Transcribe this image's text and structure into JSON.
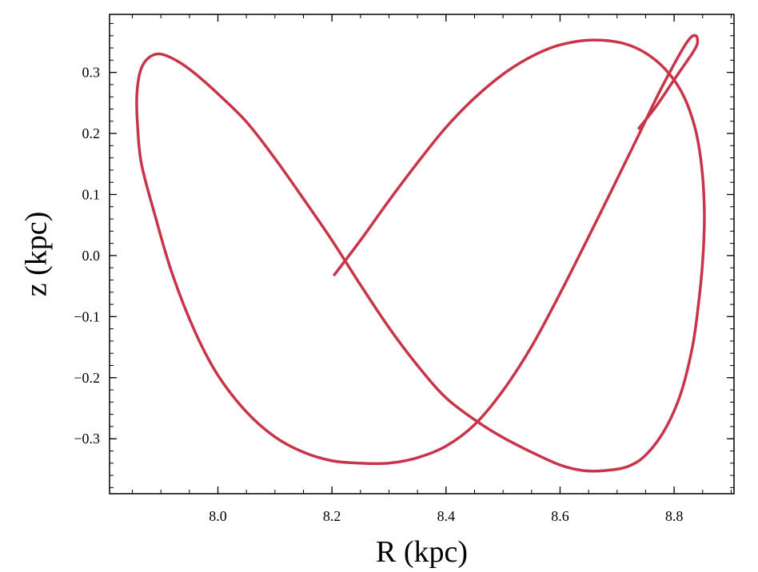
{
  "chart_data": {
    "type": "line",
    "xlabel": "R (kpc)",
    "ylabel": "z (kpc)",
    "xlim": [
      7.81,
      8.905
    ],
    "ylim": [
      -0.39,
      0.395
    ],
    "xticks": [
      {
        "value": 8.0,
        "label": "8.0"
      },
      {
        "value": 8.2,
        "label": "8.2"
      },
      {
        "value": 8.4,
        "label": "8.4"
      },
      {
        "value": 8.6,
        "label": "8.6"
      },
      {
        "value": 8.8,
        "label": "8.8"
      }
    ],
    "yticks": [
      {
        "value": 0.3,
        "label": "0.3"
      },
      {
        "value": 0.2,
        "label": "0.2"
      },
      {
        "value": 0.1,
        "label": "0.1"
      },
      {
        "value": 0.0,
        "label": "0.0"
      },
      {
        "value": -0.1,
        "label": "−0.1"
      },
      {
        "value": -0.2,
        "label": "−0.2"
      },
      {
        "value": -0.3,
        "label": "−0.3"
      }
    ],
    "x_minor_step": 0.05,
    "y_minor_step": 0.02,
    "grid": false,
    "ticks_direction": "in",
    "line_color": "#C8344A",
    "series": [
      {
        "x": [
          8.203,
          8.25,
          8.3,
          8.35,
          8.4,
          8.45,
          8.5,
          8.55,
          8.6,
          8.66,
          8.72,
          8.77,
          8.81,
          8.835,
          8.848,
          8.853,
          8.85,
          8.842,
          8.832,
          8.812,
          8.785,
          8.752,
          8.72,
          8.68,
          8.64,
          8.6,
          8.55,
          8.5,
          8.455,
          8.4,
          8.35,
          8.3,
          8.25,
          8.2,
          8.15,
          8.1,
          8.05,
          8.0,
          7.96,
          7.93,
          7.9,
          7.88,
          7.865,
          7.858,
          7.859,
          7.866,
          7.89,
          7.92,
          7.96,
          8.0,
          8.05,
          8.1,
          8.15,
          8.2,
          8.25,
          8.3,
          8.35,
          8.4,
          8.45,
          8.5,
          8.55,
          8.6,
          8.64,
          8.69,
          8.735,
          8.771,
          8.798,
          8.818,
          8.83,
          8.838,
          8.841,
          8.84,
          8.833,
          8.82,
          8.8,
          8.785,
          8.765,
          8.737
        ],
        "y": [
          -0.033,
          0.025,
          0.09,
          0.152,
          0.21,
          0.258,
          0.297,
          0.326,
          0.345,
          0.353,
          0.345,
          0.318,
          0.273,
          0.215,
          0.148,
          0.07,
          -0.01,
          -0.085,
          -0.15,
          -0.225,
          -0.283,
          -0.325,
          -0.345,
          -0.352,
          -0.352,
          -0.343,
          -0.322,
          -0.298,
          -0.272,
          -0.233,
          -0.18,
          -0.118,
          -0.048,
          0.025,
          0.093,
          0.159,
          0.219,
          0.265,
          0.298,
          0.318,
          0.33,
          0.325,
          0.305,
          0.265,
          0.215,
          0.15,
          0.065,
          -0.03,
          -0.125,
          -0.196,
          -0.256,
          -0.297,
          -0.322,
          -0.336,
          -0.34,
          -0.34,
          -0.331,
          -0.312,
          -0.277,
          -0.221,
          -0.149,
          -0.062,
          0.012,
          0.106,
          0.192,
          0.262,
          0.31,
          0.343,
          0.358,
          0.36,
          0.354,
          0.345,
          0.333,
          0.315,
          0.288,
          0.267,
          0.24,
          0.207
        ]
      }
    ]
  }
}
